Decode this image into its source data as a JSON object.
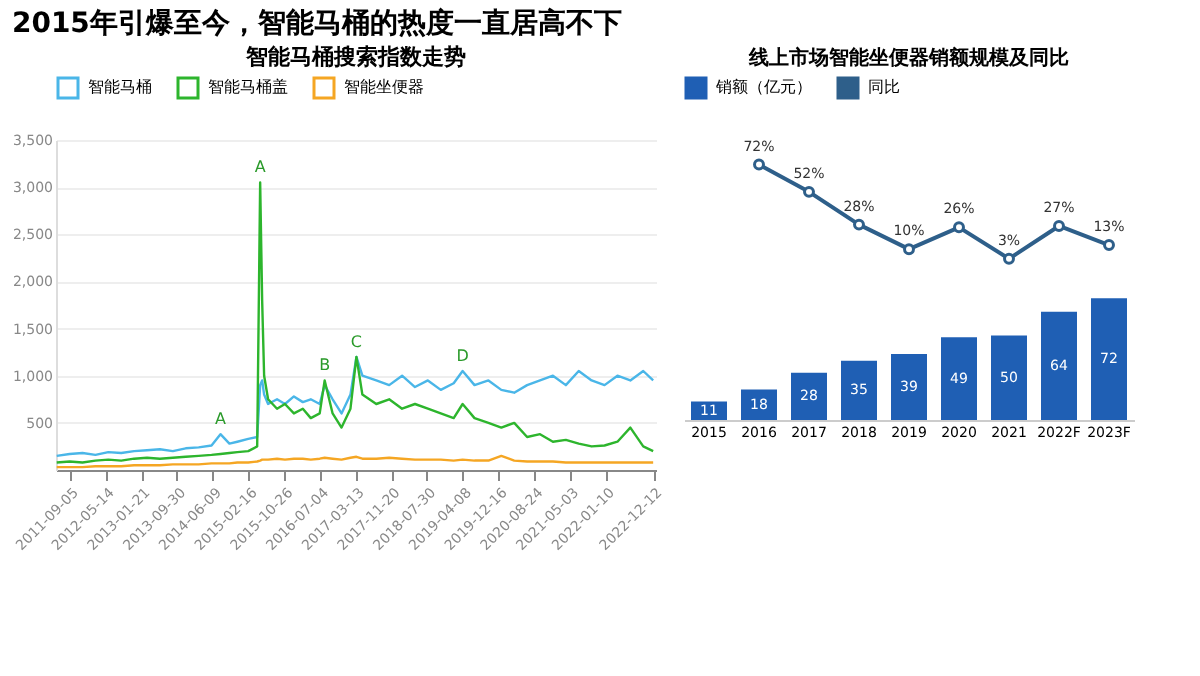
{
  "chart_data": [
    {
      "type": "line",
      "title": "2015年引爆至今，智能马桶的热度一直居高不下",
      "subtitle": "智能马桶搜索指数走势",
      "x": [
        "2011-06-06",
        "2011-09-05",
        "2011-12-05",
        "2012-03-05",
        "2012-06-04",
        "2012-09-03",
        "2012-12-03",
        "2013-03-04",
        "2013-06-03",
        "2013-09-02",
        "2013-12-02",
        "2014-03-03",
        "2014-06-02",
        "2014-08-04",
        "2014-10-06",
        "2014-12-01",
        "2015-02-16",
        "2015-04-20",
        "2015-05-11",
        "2015-05-25",
        "2015-06-08",
        "2015-07-06",
        "2015-09-07",
        "2015-11-02",
        "2016-01-04",
        "2016-03-07",
        "2016-05-02",
        "2016-07-04",
        "2016-08-08",
        "2016-10-03",
        "2016-12-05",
        "2017-02-06",
        "2017-03-20",
        "2017-05-01",
        "2017-08-07",
        "2017-11-06",
        "2018-02-05",
        "2018-05-07",
        "2018-08-06",
        "2018-11-05",
        "2019-02-04",
        "2019-04-08",
        "2019-07-01",
        "2019-10-07",
        "2020-01-06",
        "2020-04-06",
        "2020-07-06",
        "2020-10-05",
        "2021-01-04",
        "2021-04-05",
        "2021-07-05",
        "2021-10-04",
        "2022-01-03",
        "2022-04-04",
        "2022-07-04",
        "2022-10-03",
        "2022-12-12"
      ],
      "series": [
        {
          "name": "智能马桶",
          "color": "#4ab6e8",
          "values": [
            150,
            170,
            180,
            160,
            190,
            180,
            200,
            210,
            220,
            200,
            230,
            240,
            260,
            380,
            280,
            300,
            330,
            350,
            900,
            950,
            800,
            700,
            750,
            700,
            780,
            720,
            750,
            700,
            900,
            750,
            600,
            800,
            1200,
            1000,
            950,
            900,
            1000,
            880,
            950,
            850,
            920,
            1050,
            900,
            950,
            850,
            820,
            900,
            950,
            1000,
            900,
            1050,
            950,
            900,
            1000,
            950,
            1050,
            950
          ]
        },
        {
          "name": "智能马桶盖",
          "color": "#2db52d",
          "values": [
            80,
            90,
            80,
            100,
            110,
            100,
            120,
            130,
            120,
            130,
            140,
            150,
            160,
            170,
            180,
            190,
            200,
            250,
            3050,
            1800,
            1000,
            750,
            650,
            700,
            600,
            650,
            550,
            600,
            950,
            600,
            450,
            650,
            1200,
            800,
            700,
            750,
            650,
            700,
            650,
            600,
            550,
            700,
            550,
            500,
            450,
            500,
            350,
            380,
            300,
            320,
            280,
            250,
            260,
            300,
            450,
            250,
            200
          ]
        },
        {
          "name": "智能坐便器",
          "color": "#f5a623",
          "values": [
            30,
            30,
            30,
            40,
            40,
            40,
            50,
            50,
            50,
            60,
            60,
            60,
            70,
            70,
            70,
            80,
            80,
            90,
            100,
            110,
            110,
            110,
            120,
            110,
            120,
            120,
            110,
            120,
            130,
            120,
            110,
            130,
            140,
            120,
            120,
            130,
            120,
            110,
            110,
            110,
            100,
            110,
            100,
            100,
            150,
            100,
            90,
            90,
            90,
            80,
            80,
            80,
            80,
            80,
            80,
            80,
            80
          ]
        }
      ],
      "xlim": [
        "2011-06-01",
        "2023-01-01"
      ],
      "xticks": [
        {
          "value": "2011-09-05",
          "label": "2011-09-05"
        },
        {
          "value": "2012-05-14",
          "label": "2012-05-14"
        },
        {
          "value": "2013-01-21",
          "label": "2013-01-21"
        },
        {
          "value": "2013-09-30",
          "label": "2013-09-30"
        },
        {
          "value": "2014-06-09",
          "label": "2014-06-09"
        },
        {
          "value": "2015-02-16",
          "label": "2015-02-16"
        },
        {
          "value": "2015-10-26",
          "label": "2015-10-26"
        },
        {
          "value": "2016-07-04",
          "label": "2016-07-04"
        },
        {
          "value": "2017-03-13",
          "label": "2017-03-13"
        },
        {
          "value": "2017-11-20",
          "label": "2017-11-20"
        },
        {
          "value": "2018-07-30",
          "label": "2018-07-30"
        },
        {
          "value": "2019-04-08",
          "label": "2019-04-08"
        },
        {
          "value": "2019-12-16",
          "label": "2019-12-16"
        },
        {
          "value": "2020-08-24",
          "label": "2020-08-24"
        },
        {
          "value": "2021-05-03",
          "label": "2021-05-03"
        },
        {
          "value": "2022-01-10",
          "label": "2022-01-10"
        },
        {
          "value": "2022-12-12",
          "label": "2022-12-12"
        }
      ],
      "ylim": [
        0,
        3500
      ],
      "yticks": [
        {
          "value": 0,
          "label": null
        },
        {
          "value": 500,
          "label": "500"
        },
        {
          "value": 1000,
          "label": "1,000"
        },
        {
          "value": 1500,
          "label": "1,500"
        },
        {
          "value": 2000,
          "label": "2,000"
        },
        {
          "value": 2500,
          "label": "2,500"
        },
        {
          "value": 3000,
          "label": "3,000"
        },
        {
          "value": 3500,
          "label": "3,500"
        }
      ],
      "grid": "y",
      "legend": "top left",
      "marker": "none",
      "line_style": "solid",
      "annotations": [
        {
          "text": "A",
          "x": "2014-08-04",
          "y": 380
        },
        {
          "text": "A",
          "x": "2015-05-11",
          "y": 3050
        },
        {
          "text": "B",
          "x": "2016-08-08",
          "y": 950
        },
        {
          "text": "C",
          "x": "2017-03-20",
          "y": 1200
        },
        {
          "text": "D",
          "x": "2019-04-08",
          "y": 1050
        }
      ]
    },
    {
      "type": "line",
      "title": "线上市场智能坐便器销额规模及同比",
      "categories": [
        null,
        null,
        null,
        null,
        null,
        null,
        null,
        null,
        null
      ],
      "series": [
        {
          "name": "同比",
          "color": "#2e5f8a",
          "values": [
            null,
            72,
            52,
            28,
            10,
            26,
            3,
            27,
            13
          ],
          "value_labels": [
            null,
            "72%",
            "52%",
            "28%",
            "10%",
            "26%",
            "3%",
            "27%",
            "13%"
          ]
        }
      ],
      "tick_labels": false,
      "marker": "circle",
      "legend": "top"
    },
    {
      "type": "bar",
      "categories": [
        "2015",
        "2016",
        "2017",
        "2018",
        "2019",
        "2020",
        "2021",
        "2022F",
        "2023F"
      ],
      "series": [
        {
          "name": "销额（亿元）",
          "color": "#1f5fb4",
          "values": [
            11,
            18,
            28,
            35,
            39,
            49,
            50,
            64,
            72
          ]
        }
      ],
      "data_labels": true,
      "tick_labels": "x"
    }
  ]
}
